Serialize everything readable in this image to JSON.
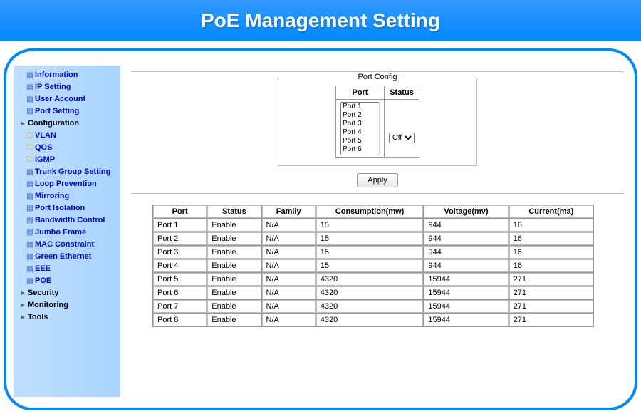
{
  "header": {
    "title": "PoE Management Setting"
  },
  "colors": {
    "header_bg_top": "#3399ff",
    "header_bg_bottom": "#0088ff",
    "border": "#0088ff",
    "sidebar_bg_left": "#bfdfff",
    "sidebar_bg_right": "#a8d4ff",
    "link": "#0000cc"
  },
  "sidebar": {
    "items": [
      {
        "label": "Information",
        "icon": "page",
        "level": 1
      },
      {
        "label": "IP Setting",
        "icon": "page",
        "level": 1
      },
      {
        "label": "User Account",
        "icon": "page",
        "level": 1
      },
      {
        "label": "Port Setting",
        "icon": "page",
        "level": 1
      },
      {
        "label": "Configuration",
        "icon": "bullet",
        "level": 0,
        "plain": true
      },
      {
        "label": "VLAN",
        "icon": "folder",
        "level": 1
      },
      {
        "label": "QOS",
        "icon": "folder",
        "level": 1
      },
      {
        "label": "IGMP",
        "icon": "folder",
        "level": 1
      },
      {
        "label": "Trunk Group Setting",
        "icon": "page",
        "level": 1
      },
      {
        "label": "Loop Prevention",
        "icon": "page",
        "level": 1
      },
      {
        "label": "Mirroring",
        "icon": "page",
        "level": 1
      },
      {
        "label": "Port Isolation",
        "icon": "page",
        "level": 1
      },
      {
        "label": "Bandwidth Control",
        "icon": "page",
        "level": 1
      },
      {
        "label": "Jumbo Frame",
        "icon": "page",
        "level": 1
      },
      {
        "label": "MAC Constraint",
        "icon": "page",
        "level": 1
      },
      {
        "label": "Green Ethernet",
        "icon": "page",
        "level": 1
      },
      {
        "label": "EEE",
        "icon": "page",
        "level": 1
      },
      {
        "label": "POE",
        "icon": "page",
        "level": 1
      },
      {
        "label": "Security",
        "icon": "bullet",
        "level": 0,
        "plain": true
      },
      {
        "label": "Monitoring",
        "icon": "bullet",
        "level": 0,
        "plain": true
      },
      {
        "label": "Tools",
        "icon": "bullet",
        "level": 0,
        "plain": true
      }
    ]
  },
  "port_config": {
    "legend": "Port Config",
    "headers": {
      "port": "Port",
      "status": "Status"
    },
    "port_options": [
      "Port 1",
      "Port 2",
      "Port 3",
      "Port 4",
      "Port 5",
      "Port 6"
    ],
    "status_options": [
      "Off"
    ],
    "status_selected": "Off",
    "apply_label": "Apply"
  },
  "status_table": {
    "columns": [
      "Port",
      "Status",
      "Family",
      "Consumption(mw)",
      "Voltage(mv)",
      "Current(ma)"
    ],
    "rows": [
      [
        "Port 1",
        "Enable",
        "N/A",
        "15",
        "944",
        "16"
      ],
      [
        "Port 2",
        "Enable",
        "N/A",
        "15",
        "944",
        "16"
      ],
      [
        "Port 3",
        "Enable",
        "N/A",
        "15",
        "944",
        "16"
      ],
      [
        "Port 4",
        "Enable",
        "N/A",
        "15",
        "944",
        "16"
      ],
      [
        "Port 5",
        "Enable",
        "N/A",
        "4320",
        "15944",
        "271"
      ],
      [
        "Port 6",
        "Enable",
        "N/A",
        "4320",
        "15944",
        "271"
      ],
      [
        "Port 7",
        "Enable",
        "N/A",
        "4320",
        "15944",
        "271"
      ],
      [
        "Port 8",
        "Enable",
        "N/A",
        "4320",
        "15944",
        "271"
      ]
    ],
    "col_widths": [
      "70px",
      "70px",
      "70px",
      "140px",
      "110px",
      "110px"
    ]
  }
}
